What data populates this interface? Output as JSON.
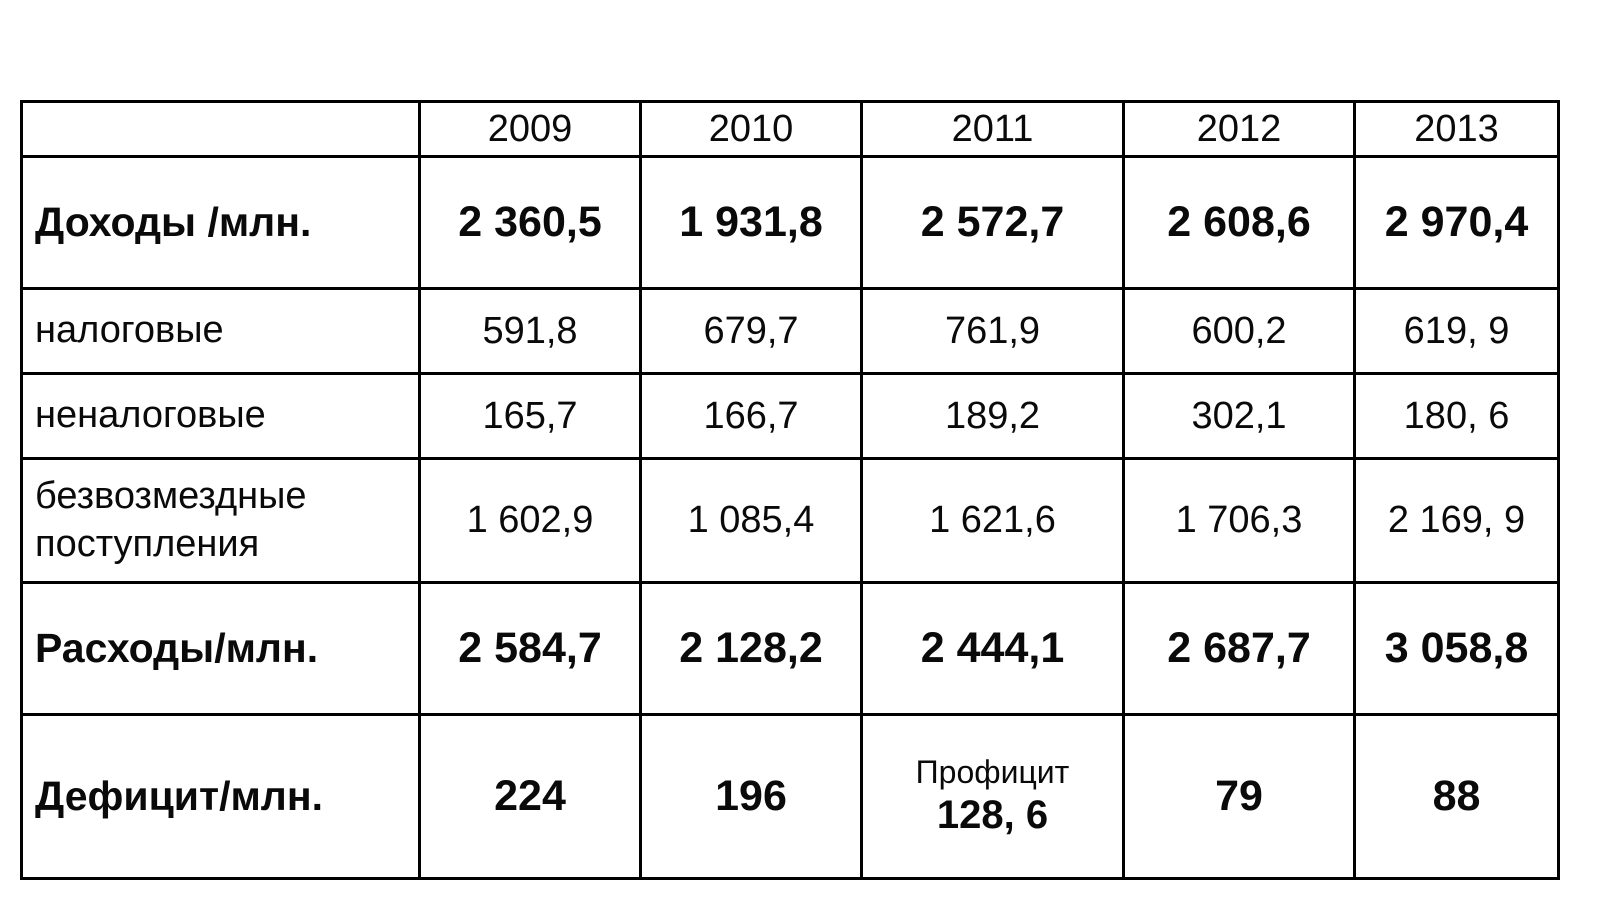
{
  "chart_data": {
    "type": "table",
    "columns": [
      "",
      "2009",
      "2010",
      "2011",
      "2012",
      "2013"
    ],
    "rows": [
      {
        "label": "Доходы /млн.",
        "emphasis": true,
        "values": [
          "2 360,5",
          "1 931,8",
          "2 572,7",
          "2 608,6",
          "2 970,4"
        ]
      },
      {
        "label": "налоговые",
        "emphasis": false,
        "values": [
          "591,8",
          "679,7",
          "761,9",
          "600,2",
          "619, 9"
        ]
      },
      {
        "label": "неналоговые",
        "emphasis": false,
        "values": [
          "165,7",
          "166,7",
          "189,2",
          "302,1",
          "180, 6"
        ]
      },
      {
        "label": "безвозмездные поступления",
        "emphasis": false,
        "values": [
          "1 602,9",
          "1 085,4",
          "1 621,6",
          "1 706,3",
          "2 169, 9"
        ]
      },
      {
        "label": "Расходы/млн.",
        "emphasis": true,
        "values": [
          "2 584,7",
          "2 128,2",
          "2 444,1",
          "2 687,7",
          "3 058,8"
        ]
      },
      {
        "label": "Дефицит/млн.",
        "emphasis": true,
        "values": [
          "224",
          "196",
          {
            "note": "Профицит",
            "value": "128, 6"
          },
          "79",
          "88"
        ]
      }
    ],
    "colors": {
      "border": "#000000",
      "background": "#ffffff",
      "text": "#0a0a0a"
    }
  }
}
